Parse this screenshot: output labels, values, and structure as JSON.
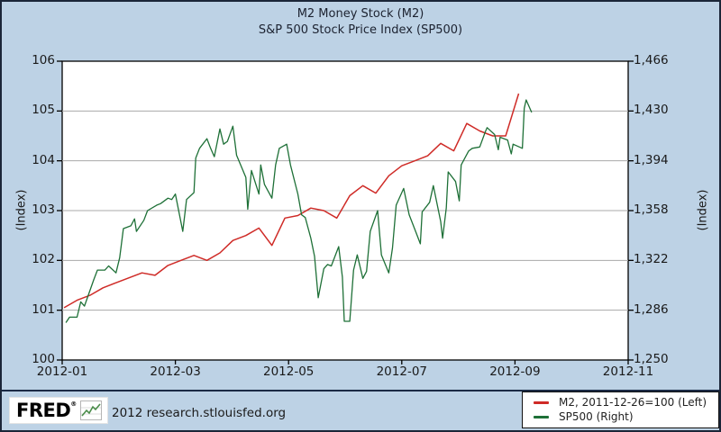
{
  "title": {
    "line1": "M2 Money Stock (M2)",
    "line2": "S&P 500 Stock Price Index (SP500)"
  },
  "axes": {
    "left_label": "(Index)",
    "right_label": "(Index)",
    "left_ticks": [
      "106",
      "105",
      "104",
      "103",
      "102",
      "101",
      "100"
    ],
    "right_ticks": [
      "1,466",
      "1,430",
      "1,394",
      "1,358",
      "1,322",
      "1,286",
      "1,250"
    ],
    "x_ticks": [
      "2012-01",
      "2012-03",
      "2012-05",
      "2012-07",
      "2012-09",
      "2012-11"
    ]
  },
  "legend": {
    "items": [
      {
        "label": "M2, 2011-12-26=100 (Left)",
        "color": "#cf2b27"
      },
      {
        "label": "SP500 (Right)",
        "color": "#1e7037"
      }
    ]
  },
  "footer": {
    "logo_text": "FRED",
    "registered_mark": "®",
    "note": "2012 research.stlouisfed.org"
  },
  "colors": {
    "background": "#bdd2e5",
    "plot_background": "#ffffff",
    "grid": "#a9a9a9",
    "plot_border": "#000000",
    "outer_border": "#1b2638",
    "m2_line": "#cf2b27",
    "sp500_line": "#1e7037",
    "text": "#1a1a1a"
  },
  "chart_data": {
    "type": "line",
    "title": "M2 Money Stock (M2) / S&P 500 Stock Price Index (SP500)",
    "xlabel": "",
    "ylabel_left": "(Index)",
    "ylabel_right": "(Index)",
    "x_range": [
      "2012-01",
      "2012-11"
    ],
    "left_ylim": [
      100,
      106
    ],
    "right_ylim": [
      1250,
      1466
    ],
    "grid": true,
    "legend_position": "bottom-right",
    "series": [
      {
        "name": "M2, 2011-12-26=100",
        "axis": "left",
        "color": "#cf2b27",
        "dates": [
          "2012-01-02",
          "2012-01-09",
          "2012-01-16",
          "2012-01-23",
          "2012-01-30",
          "2012-02-06",
          "2012-02-13",
          "2012-02-20",
          "2012-02-27",
          "2012-03-05",
          "2012-03-12",
          "2012-03-19",
          "2012-03-26",
          "2012-04-02",
          "2012-04-09",
          "2012-04-16",
          "2012-04-23",
          "2012-04-30",
          "2012-05-07",
          "2012-05-14",
          "2012-05-21",
          "2012-05-28",
          "2012-06-04",
          "2012-06-11",
          "2012-06-18",
          "2012-06-25",
          "2012-07-02",
          "2012-07-09",
          "2012-07-16",
          "2012-07-23",
          "2012-07-30",
          "2012-08-06",
          "2012-08-13",
          "2012-08-20",
          "2012-08-27",
          "2012-09-03"
        ],
        "values": [
          101.05,
          101.2,
          101.3,
          101.45,
          101.55,
          101.65,
          101.75,
          101.7,
          101.9,
          102.0,
          102.1,
          102.0,
          102.15,
          102.4,
          102.5,
          102.65,
          102.3,
          102.85,
          102.9,
          103.05,
          103.0,
          102.85,
          103.3,
          103.5,
          103.35,
          103.7,
          103.9,
          104.0,
          104.1,
          104.35,
          104.2,
          104.75,
          104.6,
          104.5,
          104.5,
          105.35
        ]
      },
      {
        "name": "SP500",
        "axis": "right",
        "color": "#1e7037",
        "dates": [
          "2012-01-03",
          "2012-01-05",
          "2012-01-09",
          "2012-01-11",
          "2012-01-13",
          "2012-01-18",
          "2012-01-20",
          "2012-01-24",
          "2012-01-26",
          "2012-01-30",
          "2012-02-01",
          "2012-02-03",
          "2012-02-07",
          "2012-02-09",
          "2012-02-10",
          "2012-02-14",
          "2012-02-16",
          "2012-02-21",
          "2012-02-23",
          "2012-02-27",
          "2012-02-29",
          "2012-03-02",
          "2012-03-06",
          "2012-03-08",
          "2012-03-12",
          "2012-03-13",
          "2012-03-15",
          "2012-03-19",
          "2012-03-21",
          "2012-03-23",
          "2012-03-26",
          "2012-03-28",
          "2012-03-30",
          "2012-04-02",
          "2012-04-04",
          "2012-04-09",
          "2012-04-10",
          "2012-04-12",
          "2012-04-16",
          "2012-04-17",
          "2012-04-19",
          "2012-04-23",
          "2012-04-25",
          "2012-04-27",
          "2012-05-01",
          "2012-05-03",
          "2012-05-07",
          "2012-05-09",
          "2012-05-11",
          "2012-05-14",
          "2012-05-16",
          "2012-05-18",
          "2012-05-21",
          "2012-05-23",
          "2012-05-25",
          "2012-05-29",
          "2012-05-31",
          "2012-06-01",
          "2012-06-04",
          "2012-06-06",
          "2012-06-08",
          "2012-06-11",
          "2012-06-13",
          "2012-06-15",
          "2012-06-19",
          "2012-06-21",
          "2012-06-25",
          "2012-06-27",
          "2012-06-29",
          "2012-07-03",
          "2012-07-06",
          "2012-07-10",
          "2012-07-12",
          "2012-07-13",
          "2012-07-17",
          "2012-07-19",
          "2012-07-23",
          "2012-07-24",
          "2012-07-26",
          "2012-07-27",
          "2012-07-31",
          "2012-08-02",
          "2012-08-03",
          "2012-08-07",
          "2012-08-09",
          "2012-08-13",
          "2012-08-16",
          "2012-08-17",
          "2012-08-21",
          "2012-08-23",
          "2012-08-24",
          "2012-08-28",
          "2012-08-30",
          "2012-08-31",
          "2012-09-05",
          "2012-09-06",
          "2012-09-07",
          "2012-09-10"
        ],
        "values": [
          1277,
          1281,
          1281,
          1292,
          1289,
          1308,
          1315,
          1315,
          1318,
          1313,
          1324,
          1345,
          1347,
          1352,
          1343,
          1351,
          1358,
          1362,
          1363,
          1367,
          1366,
          1370,
          1343,
          1366,
          1371,
          1396,
          1403,
          1410,
          1403,
          1397,
          1417,
          1406,
          1408,
          1419,
          1398,
          1382,
          1359,
          1387,
          1370,
          1391,
          1377,
          1367,
          1391,
          1403,
          1406,
          1391,
          1370,
          1355,
          1353,
          1338,
          1325,
          1295,
          1316,
          1319,
          1318,
          1332,
          1310,
          1278,
          1278,
          1315,
          1326,
          1309,
          1314,
          1343,
          1358,
          1326,
          1313,
          1331,
          1362,
          1374,
          1355,
          1341,
          1334,
          1357,
          1364,
          1376,
          1350,
          1338,
          1360,
          1386,
          1379,
          1365,
          1391,
          1401,
          1403,
          1404,
          1415,
          1418,
          1413,
          1402,
          1411,
          1409,
          1399,
          1406,
          1403,
          1432,
          1438,
          1429
        ]
      }
    ]
  }
}
